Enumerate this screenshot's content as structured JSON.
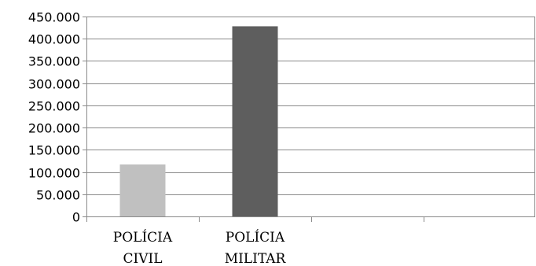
{
  "chart_data": {
    "type": "bar",
    "categories": [
      [
        "POLÍCIA",
        "CIVIL"
      ],
      [
        "POLÍCIA",
        "MILITAR"
      ],
      [],
      []
    ],
    "values": [
      117000,
      428000,
      null,
      null
    ],
    "colors": [
      "#c0c0c0",
      "#5e5e5e"
    ],
    "y_ticks": [
      "0",
      "50.000",
      "100.000",
      "150.000",
      "200.000",
      "250.000",
      "300.000",
      "350.000",
      "400.000",
      "450.000"
    ],
    "ylim": [
      0,
      450000
    ],
    "grid": true,
    "legend": "none",
    "title": "",
    "xlabel": "",
    "ylabel": ""
  }
}
